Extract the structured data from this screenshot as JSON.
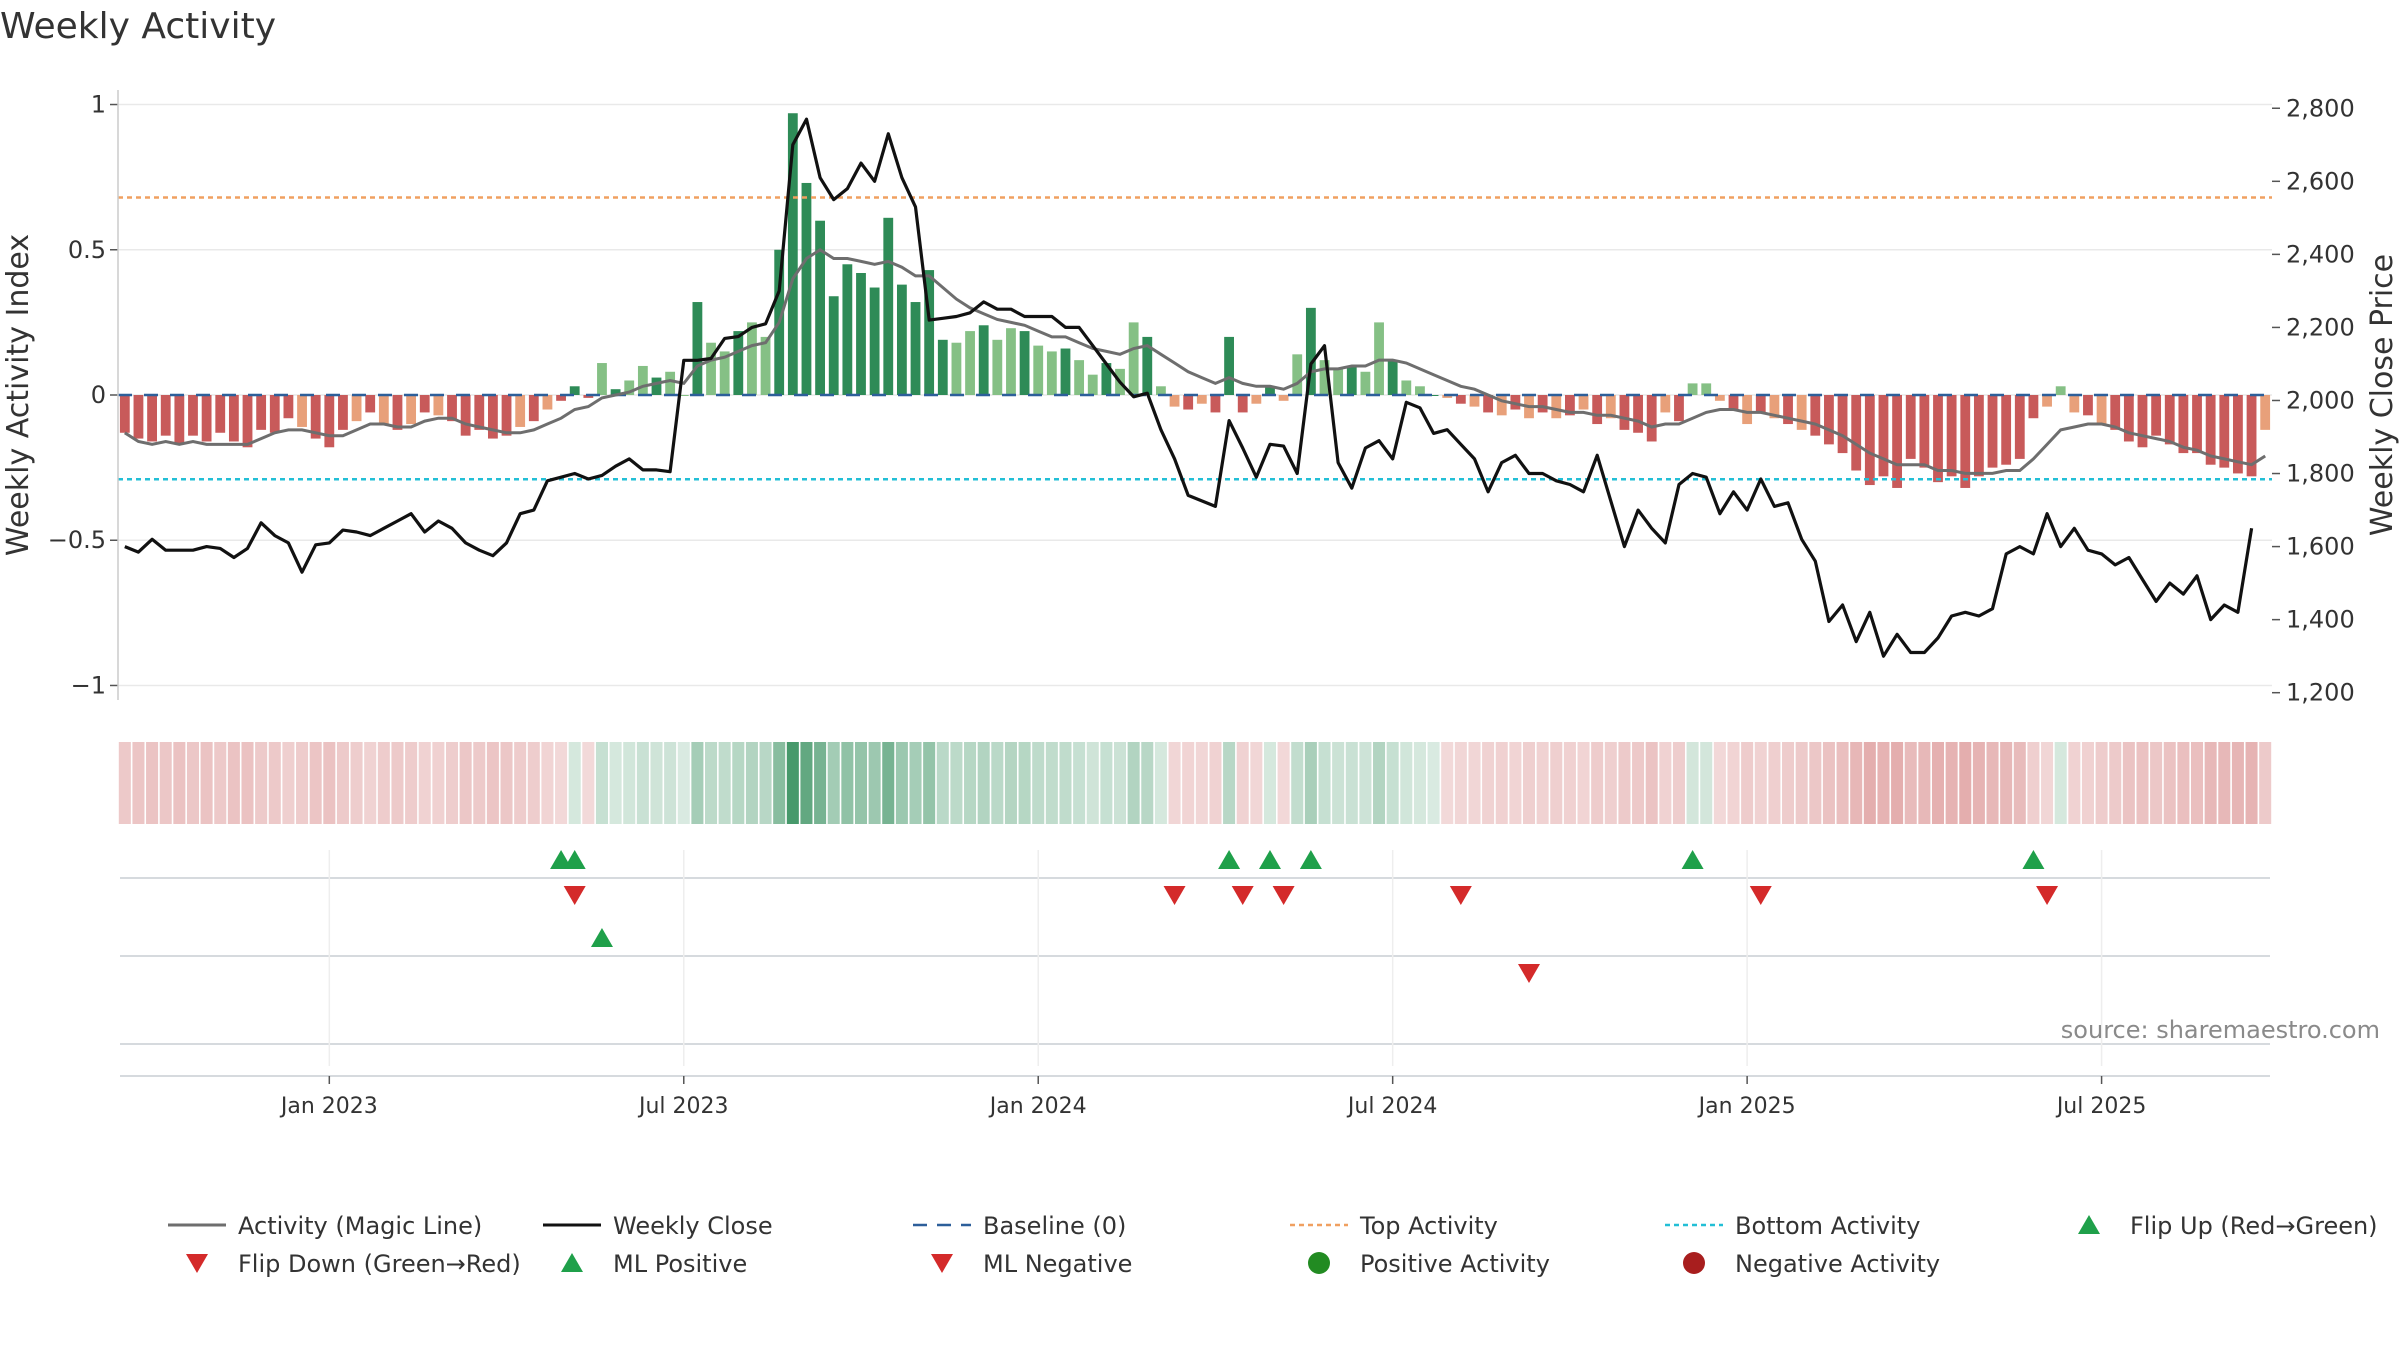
{
  "chart_data": {
    "type": "bar",
    "title": "Weekly Activity",
    "source": "source: sharemaestro.com",
    "left_axis": {
      "label": "Weekly Activity Index",
      "range": [
        -1.05,
        1.05
      ],
      "ticks": [
        1,
        0.5,
        0,
        -0.5,
        -1
      ],
      "tick_labels": [
        "1",
        "0.5",
        "0",
        "−0.5",
        "−1"
      ]
    },
    "right_axis": {
      "label": "Weekly Close Price",
      "range": [
        1180,
        2850
      ],
      "ticks": [
        2800,
        2600,
        2400,
        2200,
        2000,
        1800,
        1600,
        1400,
        1200
      ],
      "tick_labels": [
        "2,800",
        "2,600",
        "2,400",
        "2,200",
        "2,000",
        "1,800",
        "1,600",
        "1,400",
        "1,200"
      ]
    },
    "x_ticks": [
      {
        "week": 15,
        "label": "Jan 2023"
      },
      {
        "week": 41,
        "label": "Jul 2023"
      },
      {
        "week": 67,
        "label": "Jan 2024"
      },
      {
        "week": 93,
        "label": "Jul 2024"
      },
      {
        "week": 119,
        "label": "Jan 2025"
      },
      {
        "week": 145,
        "label": "Jul 2025"
      }
    ],
    "n_weeks": 158,
    "top_activity": 0.68,
    "bottom_activity": -0.29,
    "activity": [
      -0.13,
      -0.15,
      -0.16,
      -0.14,
      -0.17,
      -0.14,
      -0.16,
      -0.13,
      -0.16,
      -0.18,
      -0.12,
      -0.13,
      -0.08,
      -0.11,
      -0.15,
      -0.18,
      -0.12,
      -0.09,
      -0.06,
      -0.1,
      -0.12,
      -0.1,
      -0.06,
      -0.07,
      -0.09,
      -0.14,
      -0.12,
      -0.15,
      -0.14,
      -0.11,
      -0.09,
      -0.05,
      -0.02,
      0.03,
      -0.01,
      0.11,
      0.02,
      0.05,
      0.1,
      0.06,
      0.08,
      0.0,
      0.32,
      0.18,
      0.15,
      0.22,
      0.25,
      0.2,
      0.5,
      0.97,
      0.73,
      0.6,
      0.34,
      0.45,
      0.42,
      0.37,
      0.61,
      0.38,
      0.32,
      0.43,
      0.19,
      0.18,
      0.22,
      0.24,
      0.19,
      0.23,
      0.22,
      0.17,
      0.15,
      0.16,
      0.12,
      0.07,
      0.11,
      0.09,
      0.25,
      0.2,
      0.03,
      -0.04,
      -0.05,
      -0.03,
      -0.06,
      0.2,
      -0.06,
      -0.03,
      0.03,
      -0.02,
      0.14,
      0.3,
      0.12,
      0.09,
      0.1,
      0.08,
      0.25,
      0.12,
      0.05,
      0.03,
      0.0,
      -0.01,
      -0.03,
      -0.04,
      -0.06,
      -0.07,
      -0.05,
      -0.08,
      -0.06,
      -0.08,
      -0.07,
      -0.05,
      -0.1,
      -0.08,
      -0.12,
      -0.13,
      -0.16,
      -0.06,
      -0.09,
      0.04,
      0.04,
      -0.02,
      -0.05,
      -0.1,
      -0.06,
      -0.08,
      -0.1,
      -0.12,
      -0.14,
      -0.17,
      -0.2,
      -0.26,
      -0.31,
      -0.28,
      -0.32,
      -0.22,
      -0.25,
      -0.3,
      -0.28,
      -0.32,
      -0.28,
      -0.25,
      -0.24,
      -0.22,
      -0.08,
      -0.04,
      0.03,
      -0.06,
      -0.07,
      -0.1,
      -0.12,
      -0.16,
      -0.18,
      -0.14,
      -0.17,
      -0.2,
      -0.2,
      -0.24,
      -0.25,
      -0.27,
      -0.28,
      -0.12
    ],
    "magic_line": [
      -0.13,
      -0.16,
      -0.17,
      -0.16,
      -0.17,
      -0.16,
      -0.17,
      -0.17,
      -0.17,
      -0.17,
      -0.15,
      -0.13,
      -0.12,
      -0.12,
      -0.13,
      -0.14,
      -0.14,
      -0.12,
      -0.1,
      -0.1,
      -0.11,
      -0.11,
      -0.09,
      -0.08,
      -0.08,
      -0.1,
      -0.11,
      -0.12,
      -0.13,
      -0.13,
      -0.12,
      -0.1,
      -0.08,
      -0.05,
      -0.04,
      -0.01,
      0.0,
      0.01,
      0.03,
      0.04,
      0.05,
      0.04,
      0.1,
      0.12,
      0.13,
      0.15,
      0.17,
      0.18,
      0.25,
      0.4,
      0.47,
      0.5,
      0.47,
      0.47,
      0.46,
      0.45,
      0.46,
      0.44,
      0.41,
      0.41,
      0.37,
      0.33,
      0.3,
      0.28,
      0.26,
      0.25,
      0.24,
      0.22,
      0.2,
      0.2,
      0.18,
      0.16,
      0.15,
      0.14,
      0.16,
      0.17,
      0.14,
      0.11,
      0.08,
      0.06,
      0.04,
      0.06,
      0.04,
      0.03,
      0.03,
      0.02,
      0.04,
      0.08,
      0.09,
      0.09,
      0.1,
      0.1,
      0.12,
      0.12,
      0.11,
      0.09,
      0.07,
      0.05,
      0.03,
      0.02,
      0.0,
      -0.02,
      -0.03,
      -0.04,
      -0.04,
      -0.05,
      -0.06,
      -0.06,
      -0.07,
      -0.07,
      -0.08,
      -0.09,
      -0.11,
      -0.1,
      -0.1,
      -0.08,
      -0.06,
      -0.05,
      -0.05,
      -0.06,
      -0.06,
      -0.07,
      -0.08,
      -0.09,
      -0.1,
      -0.12,
      -0.14,
      -0.17,
      -0.2,
      -0.22,
      -0.24,
      -0.24,
      -0.24,
      -0.26,
      -0.26,
      -0.27,
      -0.27,
      -0.27,
      -0.26,
      -0.26,
      -0.22,
      -0.17,
      -0.12,
      -0.11,
      -0.1,
      -0.1,
      -0.11,
      -0.13,
      -0.14,
      -0.15,
      -0.16,
      -0.18,
      -0.19,
      -0.21,
      -0.22,
      -0.23,
      -0.24,
      -0.21
    ],
    "weekly_close": [
      1600,
      1585,
      1620,
      1590,
      1590,
      1590,
      1600,
      1595,
      1570,
      1595,
      1665,
      1630,
      1610,
      1530,
      1605,
      1610,
      1645,
      1640,
      1630,
      1650,
      1670,
      1690,
      1640,
      1670,
      1650,
      1610,
      1590,
      1575,
      1610,
      1690,
      1700,
      1780,
      1790,
      1800,
      1785,
      1795,
      1820,
      1840,
      1810,
      1810,
      1805,
      2110,
      2110,
      2115,
      2170,
      2175,
      2200,
      2210,
      2300,
      2700,
      2770,
      2610,
      2550,
      2580,
      2650,
      2600,
      2730,
      2610,
      2530,
      2220,
      2225,
      2230,
      2240,
      2270,
      2250,
      2250,
      2230,
      2230,
      2230,
      2200,
      2200,
      2150,
      2100,
      2050,
      2010,
      2020,
      1920,
      1840,
      1740,
      1725,
      1710,
      1945,
      1870,
      1790,
      1880,
      1875,
      1800,
      2100,
      2150,
      1830,
      1760,
      1870,
      1890,
      1840,
      1995,
      1980,
      1910,
      1920,
      1880,
      1840,
      1750,
      1830,
      1850,
      1800,
      1800,
      1780,
      1770,
      1750,
      1850,
      1725,
      1600,
      1700,
      1650,
      1610,
      1770,
      1800,
      1790,
      1690,
      1750,
      1700,
      1785,
      1710,
      1720,
      1620,
      1560,
      1395,
      1440,
      1340,
      1420,
      1300,
      1360,
      1310,
      1310,
      1350,
      1410,
      1420,
      1410,
      1430,
      1580,
      1600,
      1580,
      1690,
      1600,
      1650,
      1590,
      1580,
      1550,
      1570,
      1510,
      1450,
      1500,
      1470,
      1520,
      1400,
      1440,
      1420,
      1650
    ],
    "flip_up_weeks": [
      32,
      33,
      81,
      84,
      87,
      115,
      140
    ],
    "flip_down_weeks": [
      33,
      77,
      82,
      85,
      98,
      120,
      141
    ],
    "ml_positive_weeks": [
      35
    ],
    "ml_negative_weeks": [
      103
    ],
    "colors": {
      "strong_positive": "#2e8b57",
      "light_positive": "#85c085",
      "strong_negative": "#c85a5a",
      "light_negative": "#e8a07a",
      "magic_line": "#6e6e6e",
      "weekly_close": "#111111",
      "baseline": "#2d5f9a",
      "top_activity": "#f0a060",
      "bottom_activity": "#22bfd6",
      "flip_up": "#1fa04a",
      "flip_down": "#d42a2a",
      "positive_activity_dot": "#228b22",
      "negative_activity_dot": "#a81e1e"
    },
    "legend": [
      {
        "label": "Activity (Magic Line)",
        "marker": "line-gray"
      },
      {
        "label": "Weekly Close",
        "marker": "line-black"
      },
      {
        "label": "Baseline (0)",
        "marker": "dash-blue"
      },
      {
        "label": "Top Activity",
        "marker": "dot-orange"
      },
      {
        "label": "Bottom Activity",
        "marker": "dot-cyan"
      },
      {
        "label": "Flip Up (Red→Green)",
        "marker": "triangle-up-green"
      },
      {
        "label": "Flip Down (Green→Red)",
        "marker": "triangle-down-red"
      },
      {
        "label": "ML Positive",
        "marker": "triangle-up-green"
      },
      {
        "label": "ML Negative",
        "marker": "triangle-down-red"
      },
      {
        "label": "Positive Activity",
        "marker": "circle-green"
      },
      {
        "label": "Negative Activity",
        "marker": "circle-darkred"
      }
    ]
  }
}
